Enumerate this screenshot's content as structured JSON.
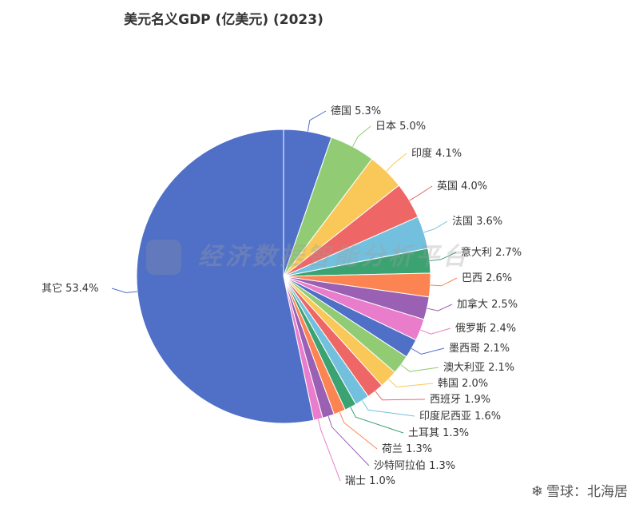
{
  "chart_data": {
    "type": "pie",
    "title": "美元名义GDP (亿美元) (2023)",
    "slices": [
      {
        "label": "德国",
        "pct_label": "5.3%",
        "value": 5.3,
        "color": "#5070c8"
      },
      {
        "label": "日本",
        "pct_label": "5.0%",
        "value": 5.0,
        "color": "#91cc75"
      },
      {
        "label": "印度",
        "pct_label": "4.1%",
        "value": 4.1,
        "color": "#fac858"
      },
      {
        "label": "英国",
        "pct_label": "4.0%",
        "value": 4.0,
        "color": "#ee6666"
      },
      {
        "label": "法国",
        "pct_label": "3.6%",
        "value": 3.6,
        "color": "#73c0de"
      },
      {
        "label": "意大利",
        "pct_label": "2.7%",
        "value": 2.7,
        "color": "#3ba272"
      },
      {
        "label": "巴西",
        "pct_label": "2.6%",
        "value": 2.6,
        "color": "#fc8452"
      },
      {
        "label": "加拿大",
        "pct_label": "2.5%",
        "value": 2.5,
        "color": "#9a60b4"
      },
      {
        "label": "俄罗斯",
        "pct_label": "2.4%",
        "value": 2.4,
        "color": "#ea7ccc"
      },
      {
        "label": "墨西哥",
        "pct_label": "2.1%",
        "value": 2.1,
        "color": "#5070c8"
      },
      {
        "label": "澳大利亚",
        "pct_label": "2.1%",
        "value": 2.1,
        "color": "#91cc75"
      },
      {
        "label": "韩国",
        "pct_label": "2.0%",
        "value": 2.0,
        "color": "#fac858"
      },
      {
        "label": "西班牙",
        "pct_label": "1.9%",
        "value": 1.9,
        "color": "#ee6666"
      },
      {
        "label": "印度尼西亚",
        "pct_label": "1.6%",
        "value": 1.6,
        "color": "#73c0de"
      },
      {
        "label": "土耳其",
        "pct_label": "1.3%",
        "value": 1.3,
        "color": "#3ba272"
      },
      {
        "label": "荷兰",
        "pct_label": "1.3%",
        "value": 1.3,
        "color": "#fc8452"
      },
      {
        "label": "沙特阿拉伯",
        "pct_label": "1.3%",
        "value": 1.3,
        "color": "#9a60b4"
      },
      {
        "label": "瑞士",
        "pct_label": "1.0%",
        "value": 1.0,
        "color": "#ea7ccc"
      },
      {
        "label": "其它",
        "pct_label": "53.4%",
        "value": 53.4,
        "color": "#5070c8"
      }
    ],
    "legend": "none"
  },
  "watermark": {
    "logo": "top",
    "text": "经济数据智能分析平台"
  },
  "footer": {
    "icon": "snowball-icon",
    "text": "雪球：北海居"
  }
}
